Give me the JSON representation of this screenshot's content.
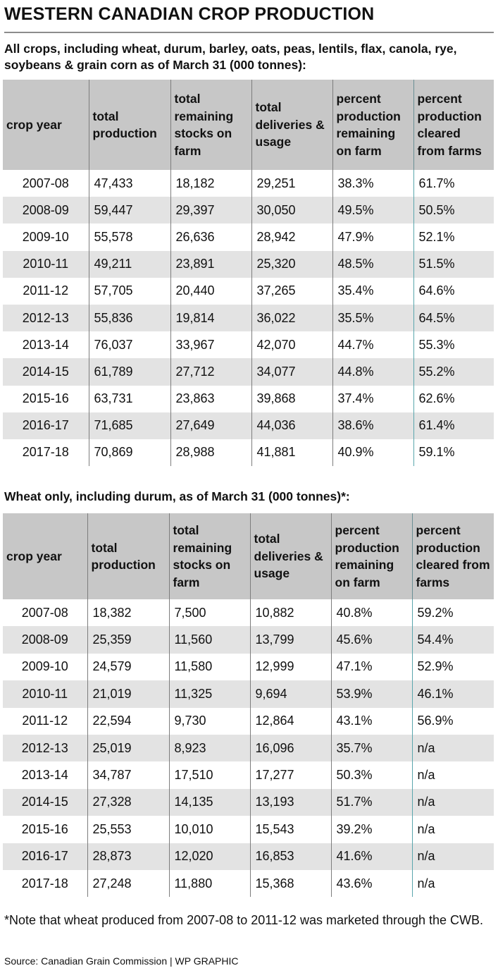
{
  "title": "WESTERN CANADIAN CROP PRODUCTION",
  "section1": {
    "subtitle": "All crops, including wheat, durum, barley, oats, peas, lentils, flax, canola, rye, soybeans & grain corn as of March 31 (000 tonnes):",
    "headers": [
      "crop year",
      "total production",
      "total remaining stocks on farm",
      "total deliveries & usage",
      "percent production remaining on farm",
      "percent production cleared from farms"
    ],
    "rows": [
      [
        "2007-08",
        "47,433",
        "18,182",
        "29,251",
        "38.3%",
        "61.7%"
      ],
      [
        "2008-09",
        "59,447",
        "29,397",
        "30,050",
        "49.5%",
        "50.5%"
      ],
      [
        "2009-10",
        "55,578",
        "26,636",
        "28,942",
        "47.9%",
        "52.1%"
      ],
      [
        "2010-11",
        "49,211",
        "23,891",
        "25,320",
        "48.5%",
        "51.5%"
      ],
      [
        "2011-12",
        "57,705",
        "20,440",
        "37,265",
        "35.4%",
        "64.6%"
      ],
      [
        "2012-13",
        "55,836",
        "19,814",
        "36,022",
        "35.5%",
        "64.5%"
      ],
      [
        "2013-14",
        "76,037",
        "33,967",
        "42,070",
        "44.7%",
        "55.3%"
      ],
      [
        "2014-15",
        "61,789",
        "27,712",
        "34,077",
        "44.8%",
        "55.2%"
      ],
      [
        "2015-16",
        "63,731",
        "23,863",
        "39,868",
        "37.4%",
        "62.6%"
      ],
      [
        "2016-17",
        "71,685",
        "27,649",
        "44,036",
        "38.6%",
        "61.4%"
      ],
      [
        "2017-18",
        "70,869",
        "28,988",
        "41,881",
        "40.9%",
        "59.1%"
      ]
    ]
  },
  "section2": {
    "subtitle": "Wheat only, including durum, as of March 31 (000 tonnes)*:",
    "headers": [
      "crop year",
      "total production",
      "total remaining stocks on farm",
      "total deliveries & usage",
      "percent production remaining on farm",
      "percent production cleared from farms"
    ],
    "rows": [
      [
        "2007-08",
        "18,382",
        "7,500",
        "10,882",
        "40.8%",
        "59.2%"
      ],
      [
        "2008-09",
        "25,359",
        "11,560",
        "13,799",
        "45.6%",
        "54.4%"
      ],
      [
        "2009-10",
        "24,579",
        "11,580",
        "12,999",
        "47.1%",
        "52.9%"
      ],
      [
        "2010-11",
        "21,019",
        "11,325",
        "9,694",
        "53.9%",
        "46.1%"
      ],
      [
        "2011-12",
        "22,594",
        "9,730",
        "12,864",
        "43.1%",
        "56.9%"
      ],
      [
        "2012-13",
        "25,019",
        "8,923",
        "16,096",
        "35.7%",
        "n/a"
      ],
      [
        "2013-14",
        "34,787",
        "17,510",
        "17,277",
        "50.3%",
        "n/a"
      ],
      [
        "2014-15",
        "27,328",
        "14,135",
        "13,193",
        "51.7%",
        "n/a"
      ],
      [
        "2015-16",
        "25,553",
        "10,010",
        "15,543",
        "39.2%",
        "n/a"
      ],
      [
        "2016-17",
        "28,873",
        "12,020",
        "16,853",
        "41.6%",
        "n/a"
      ],
      [
        "2017-18",
        "27,248",
        "11,880",
        "15,368",
        "43.6%",
        "n/a"
      ]
    ]
  },
  "note": "*Note that wheat produced from 2007-08 to 2011-12 was marketed through the CWB.",
  "source": "Source: Canadian Grain Commission  |  WP GRAPHIC",
  "colors": {
    "header_bg": "#c7c7c7",
    "stripe_bg": "#e3e3e3",
    "divider": "#7d7d7d",
    "accent_divider": "#5aa6ad"
  }
}
